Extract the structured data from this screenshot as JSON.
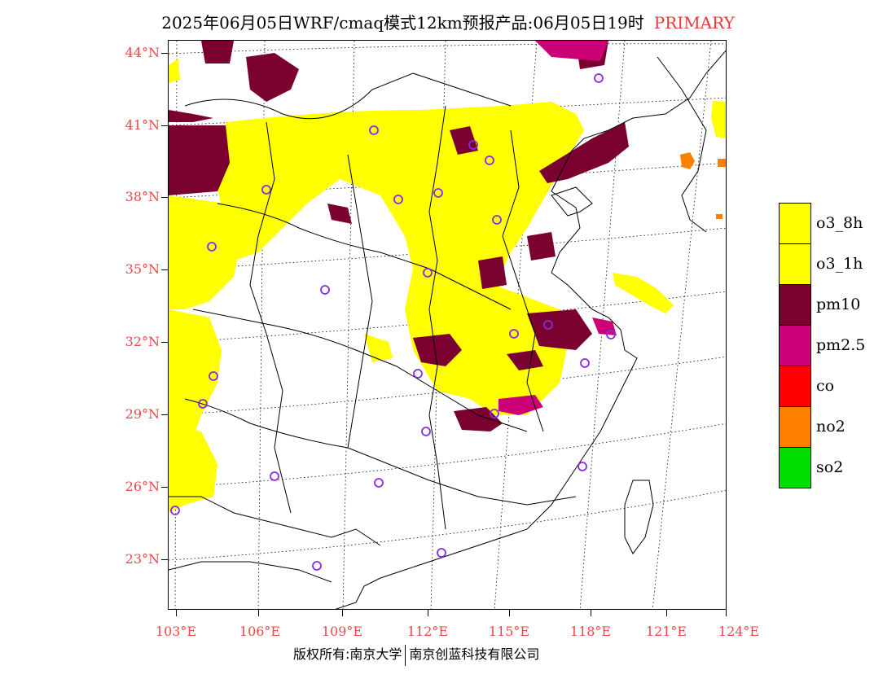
{
  "title": {
    "main": "2025年06月05日WRF/cmaq模式12km预报产品:06月05日19时",
    "tag": "PRIMARY"
  },
  "axes": {
    "lat_labels": [
      "44°N",
      "41°N",
      "38°N",
      "35°N",
      "32°N",
      "29°N",
      "26°N",
      "23°N"
    ],
    "lon_labels": [
      "103°E",
      "106°E",
      "109°E",
      "112°E",
      "115°E",
      "118°E",
      "121°E",
      "124°E"
    ]
  },
  "legend": {
    "items": [
      {
        "label": "o3_8h",
        "color": "#ffff00"
      },
      {
        "label": "o3_1h",
        "color": "#ffff00"
      },
      {
        "label": "pm10",
        "color": "#7a0030"
      },
      {
        "label": "pm2.5",
        "color": "#cc0077"
      },
      {
        "label": "co",
        "color": "#ff0000"
      },
      {
        "label": "no2",
        "color": "#ff8000"
      },
      {
        "label": "so2",
        "color": "#00dd00"
      }
    ]
  },
  "footer": {
    "left": "版权所有:南京大学",
    "right": "南京创蓝科技有限公司"
  },
  "colors": {
    "o3": "#ffff00",
    "pm10": "#7a0030",
    "pm25": "#cc0077",
    "no2": "#ff8000",
    "station": "#8a2be2",
    "axis_label": "#e84a4a"
  },
  "icons": {
    "station_marker": "circle-outline"
  }
}
